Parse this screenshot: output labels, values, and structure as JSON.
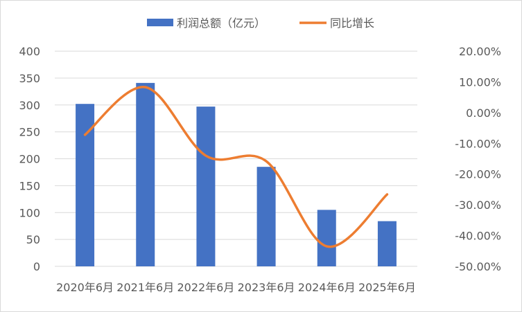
{
  "chart_data": {
    "type": "bar+line",
    "categories": [
      "2020年6月",
      "2021年6月",
      "2022年6月",
      "2023年6月",
      "2024年6月",
      "2025年6月"
    ],
    "series": [
      {
        "name": "利润总额（亿元）",
        "type": "bar",
        "axis": "left",
        "color": "#4472C4",
        "values": [
          302,
          341,
          297,
          185,
          105,
          84
        ]
      },
      {
        "name": "同比增长",
        "type": "line",
        "axis": "right",
        "smooth": true,
        "color": "#ED7D31",
        "values": [
          -7.2,
          8.3,
          -14.0,
          -15.8,
          -43.5,
          -26.6
        ]
      }
    ],
    "left_axis": {
      "ylim": [
        0,
        400
      ],
      "ticks": [
        "0",
        "50",
        "100",
        "150",
        "200",
        "250",
        "300",
        "350",
        "400"
      ]
    },
    "right_axis": {
      "ylim": [
        -50,
        20
      ],
      "unit": "%",
      "ticks": [
        "-50.00%",
        "-40.00%",
        "-30.00%",
        "-20.00%",
        "-10.00%",
        "0.00%",
        "10.00%",
        "20.00%"
      ]
    },
    "grid": true,
    "legend": "top"
  }
}
